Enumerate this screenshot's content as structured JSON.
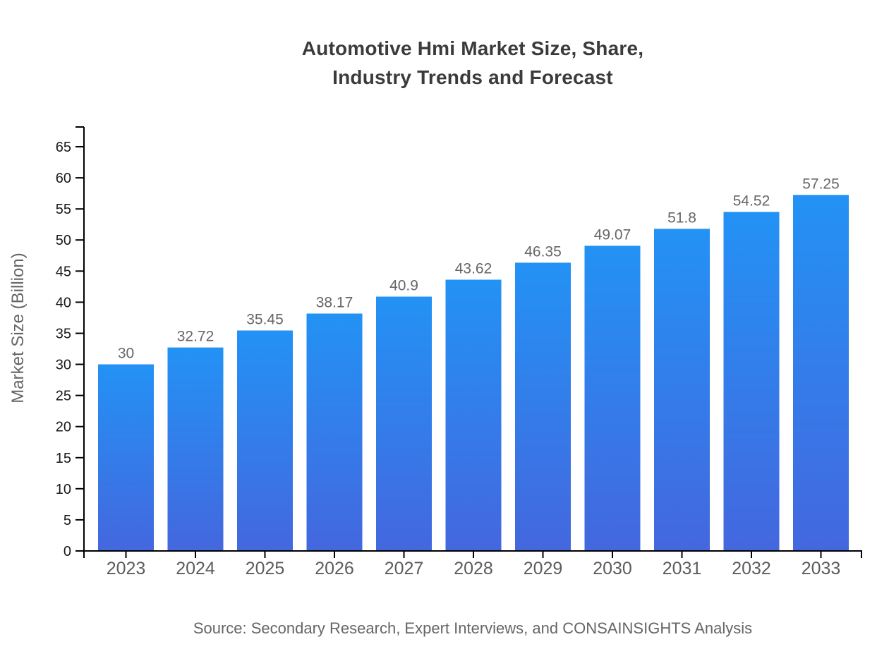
{
  "title": {
    "line1": "Automotive Hmi Market Size, Share,",
    "line2": "Industry Trends and Forecast"
  },
  "source_note": "Source: Secondary Research, Expert Interviews, and CONSAINSIGHTS Analysis",
  "chart_data": {
    "type": "bar",
    "title": "Automotive Hmi Market Size, Share, Industry Trends and Forecast",
    "categories": [
      "2023",
      "2024",
      "2025",
      "2026",
      "2027",
      "2028",
      "2029",
      "2030",
      "2031",
      "2032",
      "2033"
    ],
    "values": [
      30,
      32.72,
      35.45,
      38.17,
      40.9,
      43.62,
      46.35,
      49.07,
      51.8,
      54.52,
      57.25
    ],
    "value_labels": [
      "30",
      "32.72",
      "35.45",
      "38.17",
      "40.9",
      "43.62",
      "46.35",
      "49.07",
      "51.8",
      "54.52",
      "57.25"
    ],
    "xlabel": "",
    "ylabel": "Market Size (Billion)",
    "ylim": [
      0,
      65
    ],
    "ytick_step": 5,
    "ytick_labels": [
      "0",
      "5",
      "10",
      "15",
      "20",
      "25",
      "30",
      "35",
      "40",
      "45",
      "50",
      "55",
      "60",
      "65"
    ],
    "grid": false,
    "legend": "none"
  },
  "colors": {
    "background": "#ffffff",
    "title": "#3b3b3b",
    "axis": "#000000",
    "ytick_label": "#1a1a1a",
    "xtick_label": "#5c5c5c",
    "value_label": "#666666",
    "axis_title": "#666666",
    "source": "#666666",
    "bar_gradient_top": "#2392f5",
    "bar_gradient_bottom": "#4467de"
  }
}
